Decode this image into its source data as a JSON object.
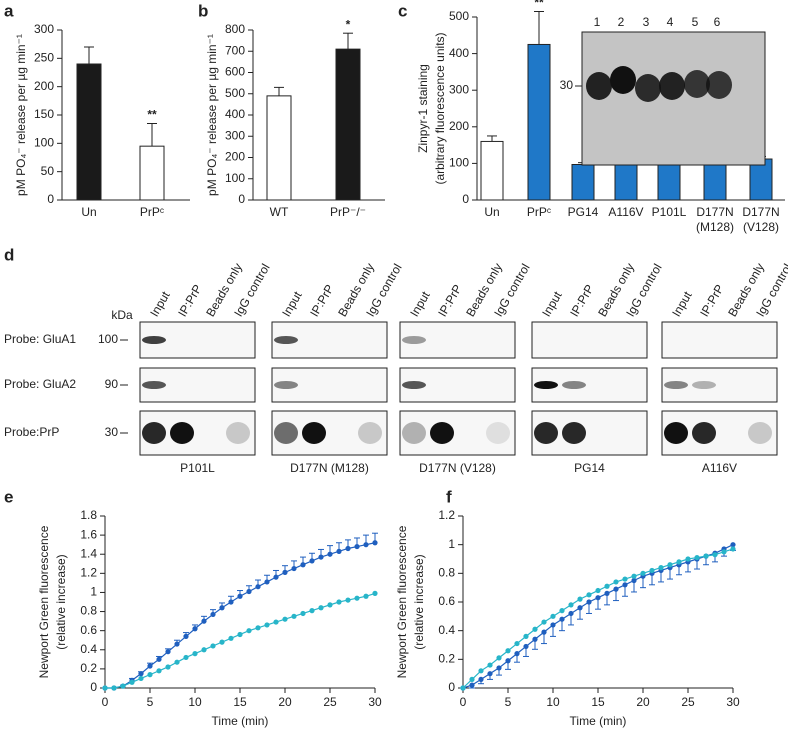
{
  "chart_data": [
    {
      "type": "bar",
      "label": "a",
      "ylabel": [
        "pM PO₄⁻ release per µg min⁻¹"
      ],
      "categories": [
        [
          "Un"
        ],
        [
          "PrPᶜ"
        ]
      ],
      "values": [
        240,
        95
      ],
      "errors": [
        30,
        40
      ],
      "colors": [
        "#1a1a1a",
        "#ffffff"
      ],
      "ylim": [
        0,
        300
      ],
      "yticks": [
        0,
        50,
        100,
        150,
        200,
        250,
        300
      ],
      "annotations": [
        {
          "text": "**",
          "category": "PrPᶜ"
        }
      ]
    },
    {
      "type": "bar",
      "label": "b",
      "ylabel": [
        "pM PO₄⁻ release per µg min⁻¹"
      ],
      "categories": [
        [
          "WT"
        ],
        [
          "PrP⁻/⁻"
        ]
      ],
      "values": [
        490,
        710
      ],
      "errors": [
        40,
        75
      ],
      "colors": [
        "#ffffff",
        "#1a1a1a"
      ],
      "ylim": [
        0,
        800
      ],
      "yticks": [
        0,
        100,
        200,
        300,
        400,
        500,
        600,
        700,
        800
      ],
      "annotations": [
        {
          "text": "*",
          "category": "PrP⁻/⁻"
        }
      ]
    },
    {
      "type": "bar",
      "label": "c",
      "ylabel": [
        "Zinpyr-1 staining",
        "(arbitrary fluorescence units)"
      ],
      "categories": [
        [
          "Un"
        ],
        [
          "PrPᶜ"
        ],
        [
          "PG14"
        ],
        [
          "A116V"
        ],
        [
          "P101L"
        ],
        [
          "D177N",
          "(M128)"
        ],
        [
          "D177N",
          "(V128)"
        ]
      ],
      "values": [
        160,
        425,
        97,
        108,
        108,
        102,
        112
      ],
      "errors": [
        15,
        90,
        5,
        5,
        8,
        3,
        7
      ],
      "colors": [
        "#ffffff",
        "#1f78c8",
        "#1f78c8",
        "#1f78c8",
        "#1f78c8",
        "#1f78c8",
        "#1f78c8"
      ],
      "ylim": [
        0,
        500
      ],
      "yticks": [
        0,
        100,
        200,
        300,
        400,
        500
      ],
      "annotations": [
        {
          "text": "**",
          "category": "PrPᶜ"
        }
      ],
      "inset": {
        "lane_labels": [
          "1",
          "2",
          "3",
          "4",
          "5",
          "6"
        ],
        "marker": "30"
      }
    },
    {
      "type": "line",
      "label": "e",
      "ylabel": [
        "Newport Green fluorescence",
        "(relative increase)"
      ],
      "xlabel": "Time (min)",
      "x": [
        0,
        1,
        2,
        3,
        4,
        5,
        6,
        7,
        8,
        9,
        10,
        11,
        12,
        13,
        14,
        15,
        16,
        17,
        18,
        19,
        20,
        21,
        22,
        23,
        24,
        25,
        26,
        27,
        28,
        29,
        30
      ],
      "series": [
        {
          "color": "#1f5fbf",
          "error_direction": "up",
          "values": [
            0,
            0,
            0.02,
            0.08,
            0.15,
            0.23,
            0.3,
            0.38,
            0.46,
            0.54,
            0.62,
            0.7,
            0.77,
            0.84,
            0.9,
            0.96,
            1.01,
            1.06,
            1.11,
            1.16,
            1.21,
            1.25,
            1.29,
            1.33,
            1.37,
            1.4,
            1.43,
            1.46,
            1.48,
            1.5,
            1.52
          ],
          "errors": [
            0,
            0,
            0.01,
            0.02,
            0.02,
            0.03,
            0.03,
            0.03,
            0.04,
            0.04,
            0.04,
            0.05,
            0.05,
            0.05,
            0.06,
            0.06,
            0.06,
            0.07,
            0.07,
            0.07,
            0.07,
            0.08,
            0.08,
            0.08,
            0.08,
            0.09,
            0.09,
            0.09,
            0.09,
            0.1,
            0.1
          ]
        },
        {
          "color": "#27b5c9",
          "values": [
            0,
            0,
            0.02,
            0.06,
            0.1,
            0.14,
            0.18,
            0.22,
            0.27,
            0.32,
            0.36,
            0.4,
            0.44,
            0.48,
            0.52,
            0.56,
            0.6,
            0.63,
            0.66,
            0.69,
            0.72,
            0.75,
            0.78,
            0.81,
            0.84,
            0.87,
            0.9,
            0.92,
            0.94,
            0.96,
            0.99
          ]
        }
      ],
      "xlim": [
        0,
        30
      ],
      "xticks": [
        0,
        5,
        10,
        15,
        20,
        25,
        30
      ],
      "ylim": [
        0,
        1.8
      ],
      "yticks": [
        0,
        0.2,
        0.4,
        0.6,
        0.8,
        1,
        1.2,
        1.4,
        1.6,
        1.8
      ]
    },
    {
      "type": "line",
      "label": "f",
      "ylabel": [
        "Newport Green fluorescence",
        "(relative increase)"
      ],
      "xlabel": "Time (min)",
      "x": [
        0,
        1,
        2,
        3,
        4,
        5,
        6,
        7,
        8,
        9,
        10,
        11,
        12,
        13,
        14,
        15,
        16,
        17,
        18,
        19,
        20,
        21,
        22,
        23,
        24,
        25,
        26,
        27,
        28,
        29,
        30
      ],
      "series": [
        {
          "color": "#1f5fbf",
          "error_direction": "down",
          "values": [
            0,
            0.02,
            0.06,
            0.1,
            0.14,
            0.19,
            0.24,
            0.29,
            0.34,
            0.39,
            0.44,
            0.48,
            0.52,
            0.56,
            0.6,
            0.63,
            0.66,
            0.69,
            0.72,
            0.75,
            0.78,
            0.8,
            0.82,
            0.84,
            0.86,
            0.88,
            0.9,
            0.92,
            0.94,
            0.97,
            1.0
          ],
          "errors": [
            0,
            0.02,
            0.03,
            0.04,
            0.05,
            0.06,
            0.06,
            0.07,
            0.07,
            0.08,
            0.08,
            0.08,
            0.08,
            0.08,
            0.08,
            0.08,
            0.08,
            0.08,
            0.08,
            0.08,
            0.08,
            0.08,
            0.08,
            0.08,
            0.07,
            0.07,
            0.07,
            0.06,
            0.06,
            0.05,
            0.04
          ]
        },
        {
          "color": "#27b5c9",
          "values": [
            0,
            0.06,
            0.12,
            0.16,
            0.21,
            0.26,
            0.31,
            0.36,
            0.41,
            0.46,
            0.5,
            0.54,
            0.58,
            0.62,
            0.65,
            0.68,
            0.71,
            0.74,
            0.76,
            0.78,
            0.8,
            0.82,
            0.84,
            0.86,
            0.88,
            0.9,
            0.91,
            0.92,
            0.93,
            0.95,
            0.97
          ]
        }
      ],
      "xlim": [
        0,
        30
      ],
      "xticks": [
        0,
        5,
        10,
        15,
        20,
        25,
        30
      ],
      "ylim": [
        0,
        1.2
      ],
      "yticks": [
        0,
        0.2,
        0.4,
        0.6,
        0.8,
        1,
        1.2
      ]
    }
  ],
  "blots": {
    "label": "d",
    "kda_label": "kDa",
    "columns": [
      "Input",
      "IP:PrP",
      "Beads only",
      "IgG control"
    ],
    "groups": [
      "P101L",
      "D177N (M128)",
      "D177N (V128)",
      "PG14",
      "A116V"
    ],
    "rows": [
      {
        "probe": "Probe: GluA1",
        "kda": "100"
      },
      {
        "probe": "Probe: GluA2",
        "kda": "90"
      },
      {
        "probe": "Probe:PrP",
        "kda": "30"
      }
    ]
  }
}
